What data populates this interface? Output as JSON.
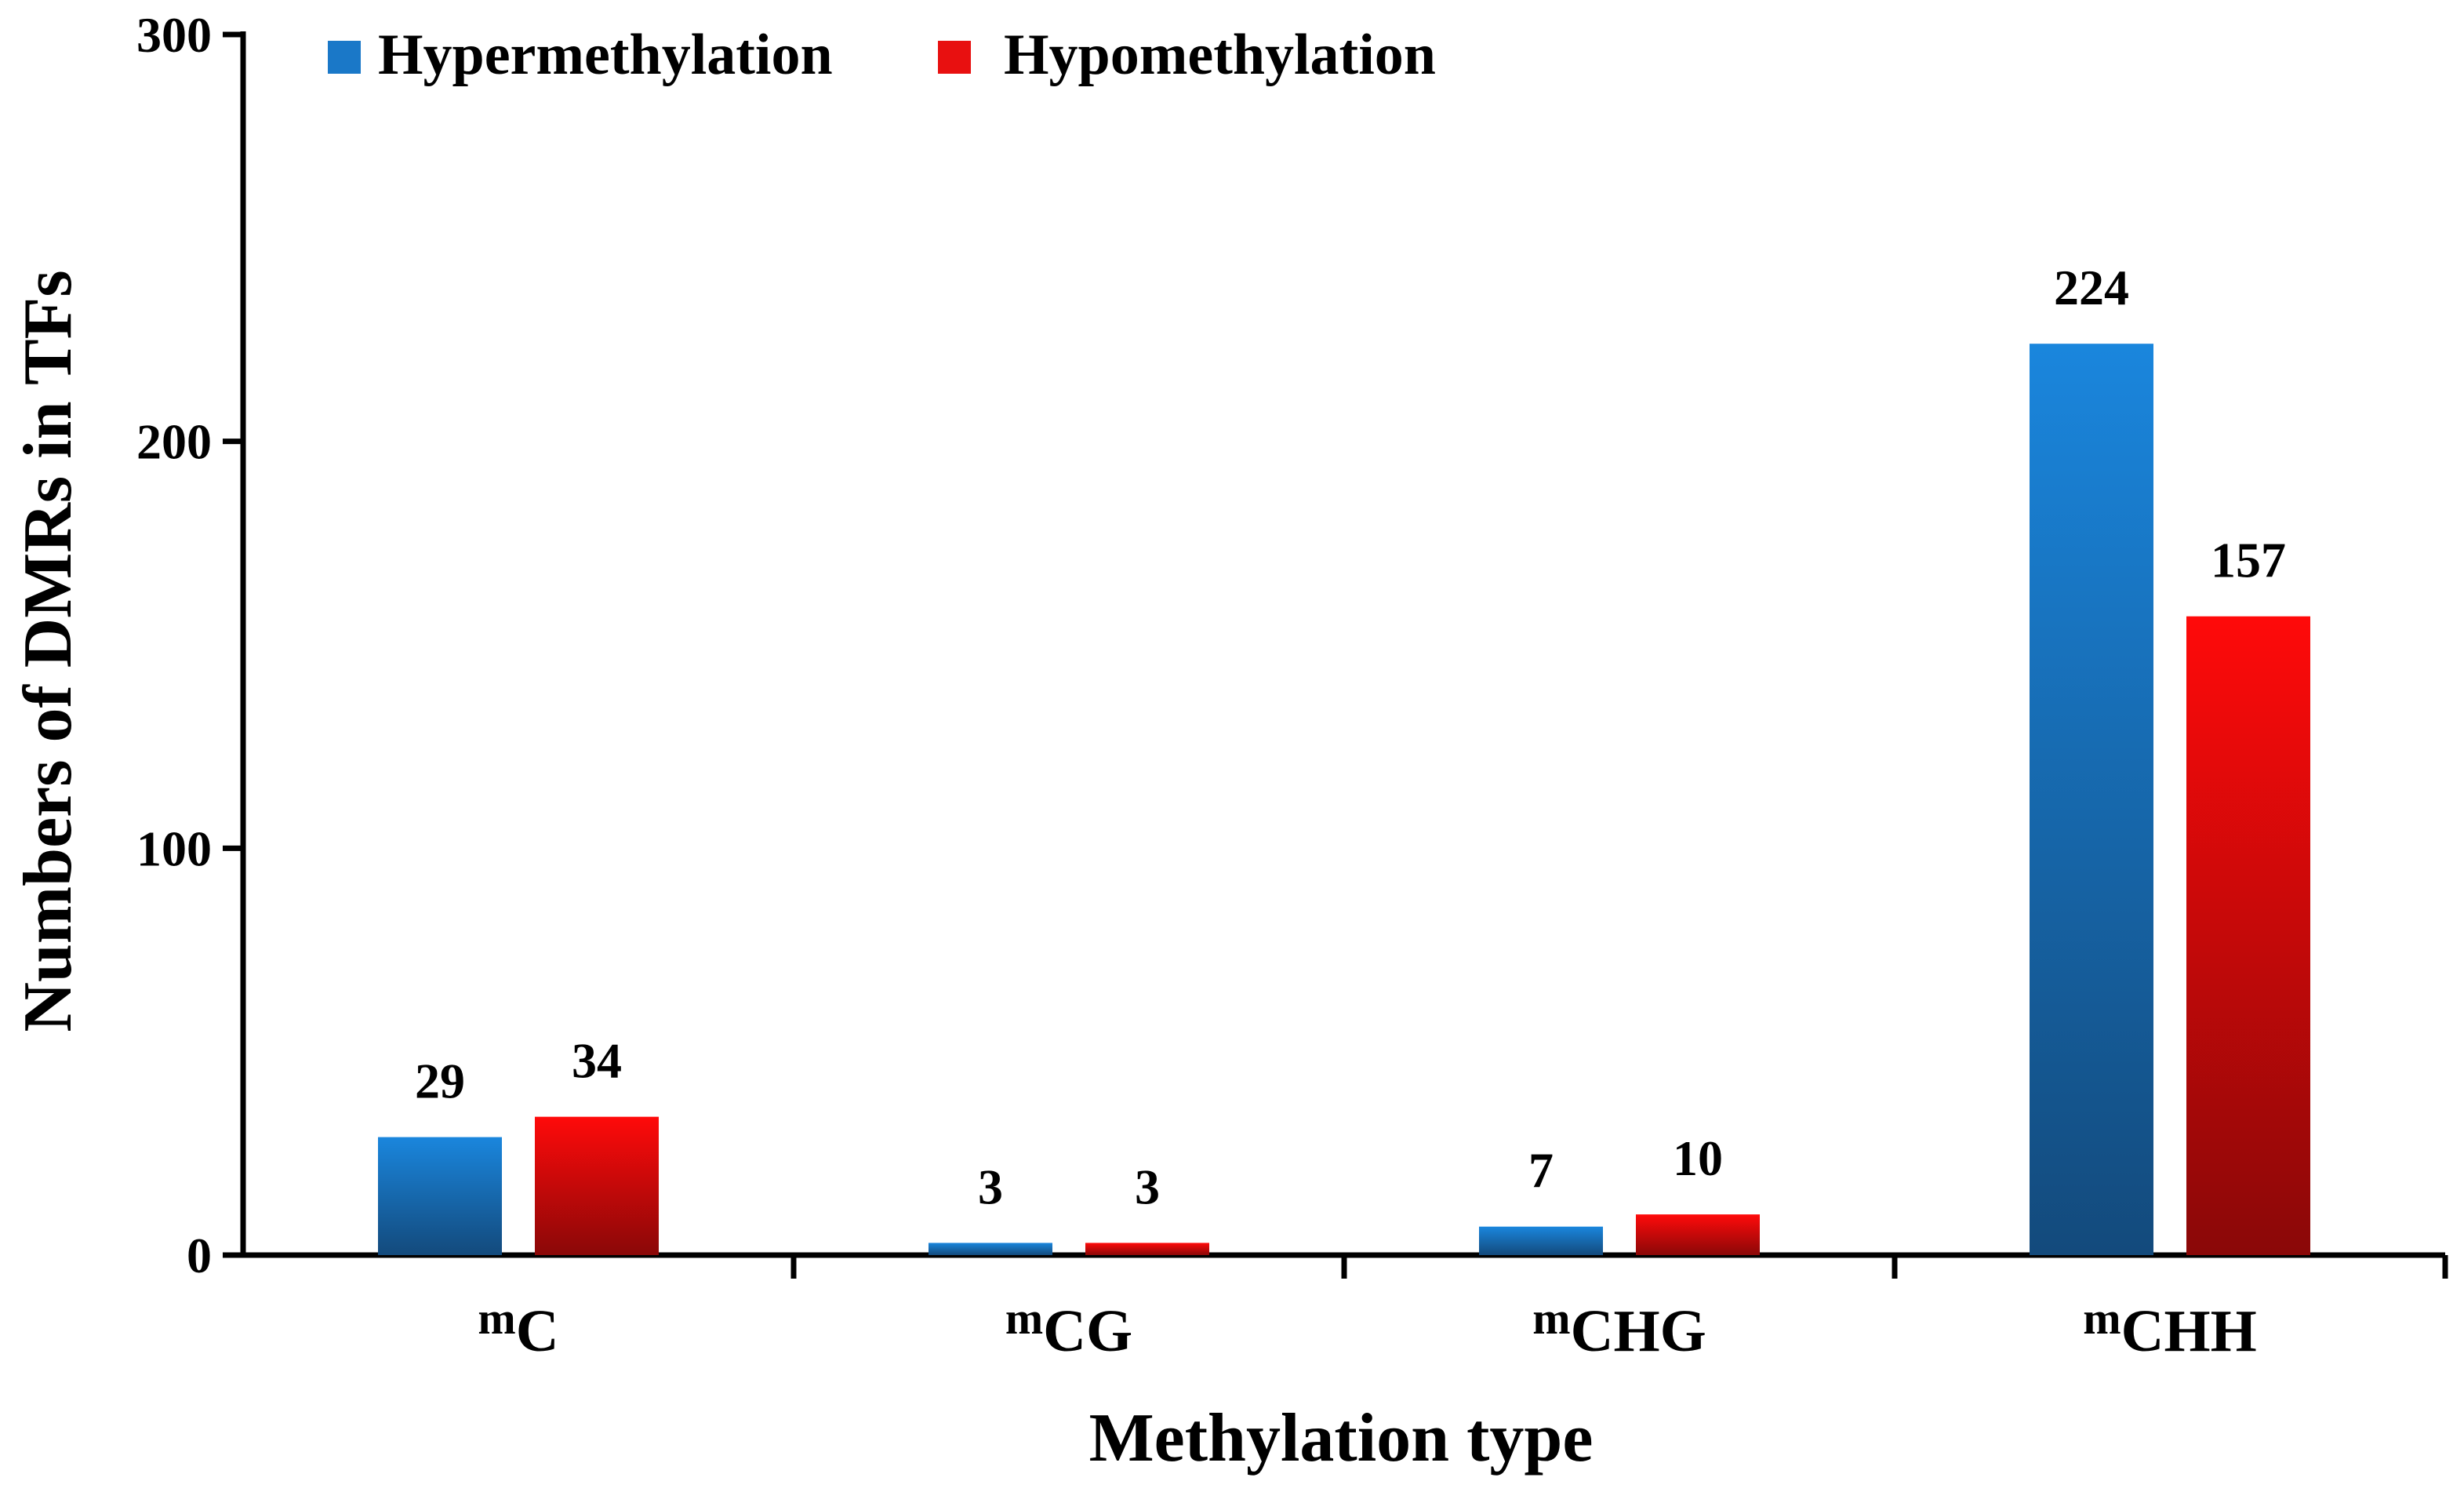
{
  "chart_data": {
    "type": "bar",
    "title": "",
    "xlabel": "Methylation type",
    "ylabel": "Numbers of DMRs in TFs",
    "ylim": [
      0,
      300
    ],
    "yticks": [
      "0",
      "100",
      "200",
      "300"
    ],
    "ytick_values": [
      0,
      100,
      200,
      300
    ],
    "grid": false,
    "legend_position": "top-left",
    "categories": [
      {
        "prefix": "m",
        "name": "C"
      },
      {
        "prefix": "m",
        "name": "CG"
      },
      {
        "prefix": "m",
        "name": "CHG"
      },
      {
        "prefix": "m",
        "name": "CHH"
      }
    ],
    "series": [
      {
        "name": "Hypermethylation",
        "values": [
          29,
          3,
          7,
          224
        ],
        "labels": [
          "29",
          "3",
          "7",
          "224"
        ]
      },
      {
        "name": "Hypomethylation",
        "values": [
          34,
          3,
          10,
          157
        ],
        "labels": [
          "34",
          "3",
          "10",
          "157"
        ]
      }
    ]
  },
  "colors": {
    "hyper_top": "#1a86dd",
    "hyper_bottom": "#134a7c",
    "hyper_legend": "#1a78c8",
    "hypo_top": "#ff0a0a",
    "hypo_bottom": "#8a0808",
    "hypo_legend": "#e81010",
    "axis": "#000000"
  }
}
